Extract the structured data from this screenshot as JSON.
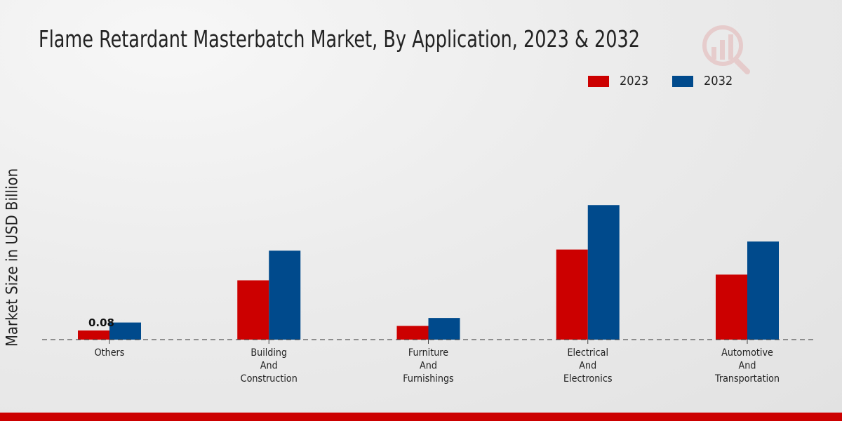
{
  "chart_data": {
    "type": "bar",
    "title": "Flame Retardant Masterbatch Market, By Application, 2023 & 2032",
    "xlabel": "",
    "ylabel": "Market Size in USD Billion",
    "categories": [
      [
        "Others"
      ],
      [
        "Building",
        "And",
        "Construction"
      ],
      [
        "Furniture",
        "And",
        "Furnishings"
      ],
      [
        "Electrical",
        "And",
        "Electronics"
      ],
      [
        "Automotive",
        "And",
        "Transportation"
      ]
    ],
    "series": [
      {
        "name": "2023",
        "color": "#cc0000",
        "values": [
          0.08,
          0.52,
          0.12,
          0.79,
          0.57
        ]
      },
      {
        "name": "2032",
        "color": "#004a8c",
        "values": [
          0.15,
          0.78,
          0.19,
          1.18,
          0.86
        ]
      }
    ],
    "data_labels": [
      {
        "series": 0,
        "index": 0,
        "text": "0.08"
      }
    ],
    "ylim": [
      0,
      1.6
    ],
    "grid": false,
    "legend": "top-right"
  }
}
